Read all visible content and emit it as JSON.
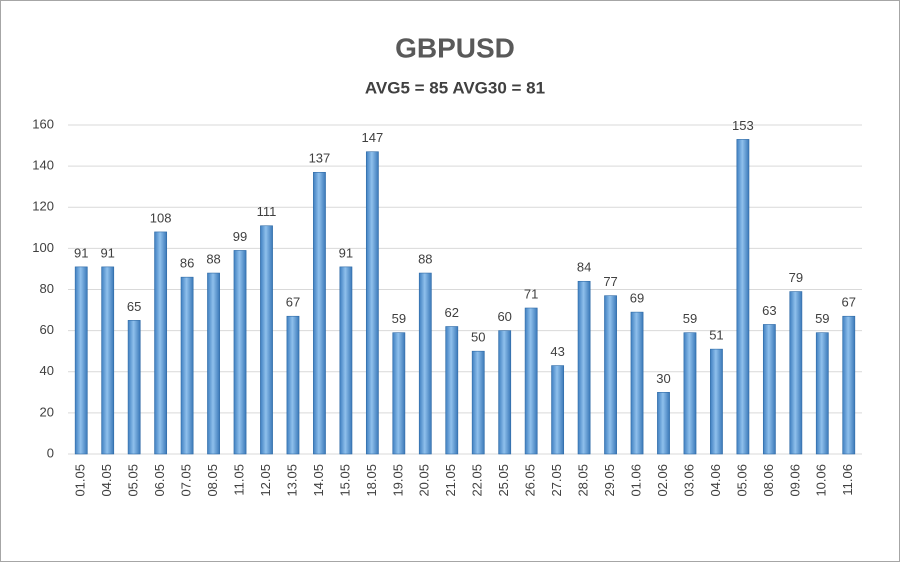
{
  "chart_data": {
    "type": "bar",
    "title": "GBPUSD",
    "subtitle": "AVG5 = 85 AVG30 = 81",
    "categories": [
      "01.05",
      "04.05",
      "05.05",
      "06.05",
      "07.05",
      "08.05",
      "11.05",
      "12.05",
      "13.05",
      "14.05",
      "15.05",
      "18.05",
      "19.05",
      "20.05",
      "21.05",
      "22.05",
      "25.05",
      "26.05",
      "27.05",
      "28.05",
      "29.05",
      "01.06",
      "02.06",
      "03.06",
      "04.06",
      "05.06",
      "08.06",
      "09.06",
      "10.06",
      "11.06"
    ],
    "values": [
      91,
      91,
      65,
      108,
      86,
      88,
      99,
      111,
      67,
      137,
      91,
      147,
      59,
      88,
      62,
      50,
      60,
      71,
      43,
      84,
      77,
      69,
      30,
      59,
      51,
      153,
      63,
      79,
      59,
      67
    ],
    "color": "#5b9bd5",
    "ylim": [
      0,
      160
    ],
    "yticks": [
      0,
      20,
      40,
      60,
      80,
      100,
      120,
      140,
      160
    ],
    "grid": true
  }
}
